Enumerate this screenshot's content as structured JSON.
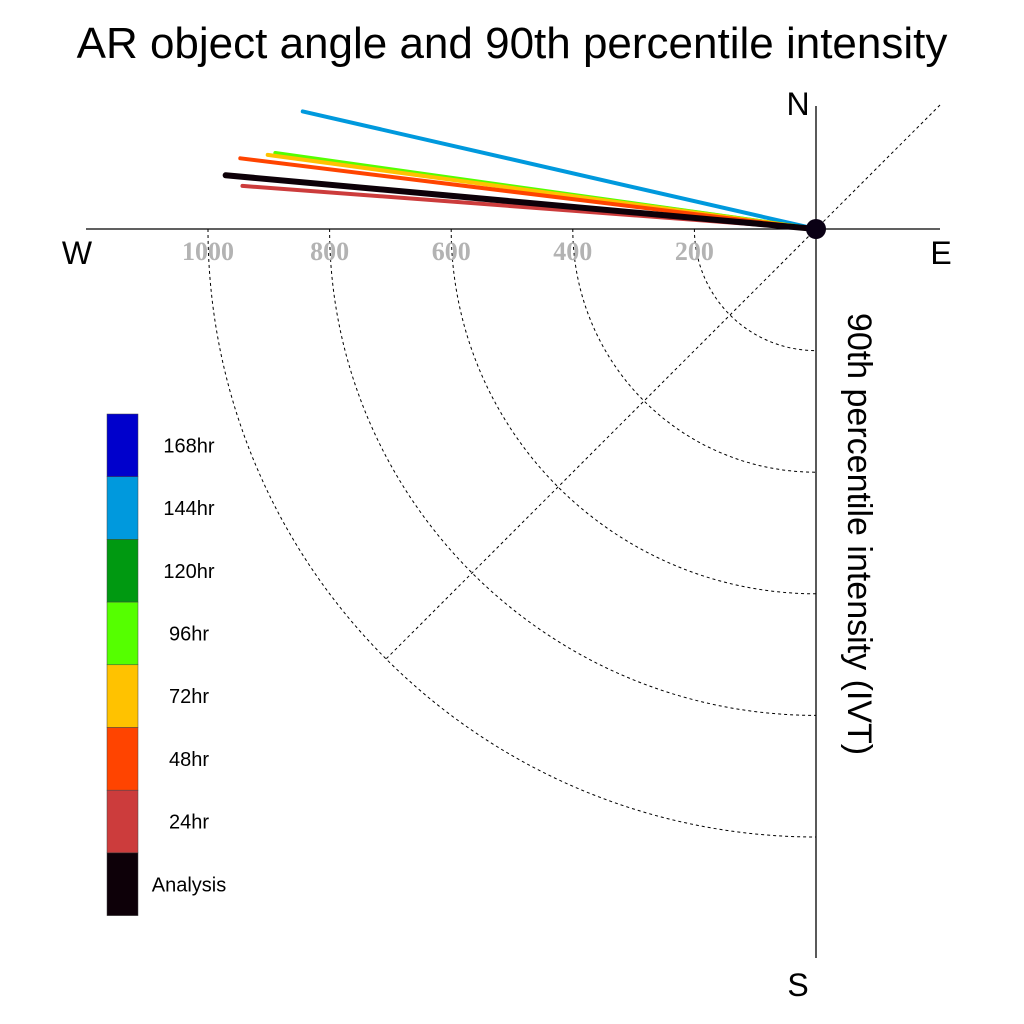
{
  "chart_data": {
    "type": "polar-quadrant-line",
    "title": "AR object angle and 90th percentile intensity",
    "ylabel": "90th percentile intensity (IVT)",
    "compass": {
      "north": "N",
      "east": "E",
      "south": "S",
      "west": "W"
    },
    "radial_ticks": [
      "200",
      "400",
      "600",
      "800",
      "1000"
    ],
    "radial_values": [
      200,
      400,
      600,
      800,
      1000
    ],
    "radial_max": 1000,
    "series": [
      {
        "name": "144hr",
        "color": "#0099dd",
        "angle_deg": 192.9,
        "intensity": 866
      },
      {
        "name": "120hr",
        "color": "#009911",
        "angle_deg": 187.9,
        "intensity": 868
      },
      {
        "name": "96hr",
        "color": "#55ff00",
        "angle_deg": 188.0,
        "intensity": 898
      },
      {
        "name": "72hr",
        "color": "#ffc200",
        "angle_deg": 187.7,
        "intensity": 910
      },
      {
        "name": "48hr",
        "color": "#ff4400",
        "angle_deg": 187.0,
        "intensity": 954
      },
      {
        "name": "24hr",
        "color": "#cc3c3c",
        "angle_deg": 184.3,
        "intensity": 946
      },
      {
        "name": "Analysis",
        "color": "#0d0008",
        "angle_deg": 185.2,
        "intensity": 975
      }
    ],
    "legend": {
      "entries": [
        {
          "label": "168hr",
          "color": "#0000cc"
        },
        {
          "label": "144hr",
          "color": "#0099dd"
        },
        {
          "label": "120hr",
          "color": "#009911"
        },
        {
          "label": "96hr",
          "color": "#55ff00"
        },
        {
          "label": "72hr",
          "color": "#ffc200"
        },
        {
          "label": "48hr",
          "color": "#ff4400"
        },
        {
          "label": "24hr",
          "color": "#cc3c3c"
        },
        {
          "label": "Analysis",
          "color": "#0d0008"
        }
      ]
    }
  }
}
